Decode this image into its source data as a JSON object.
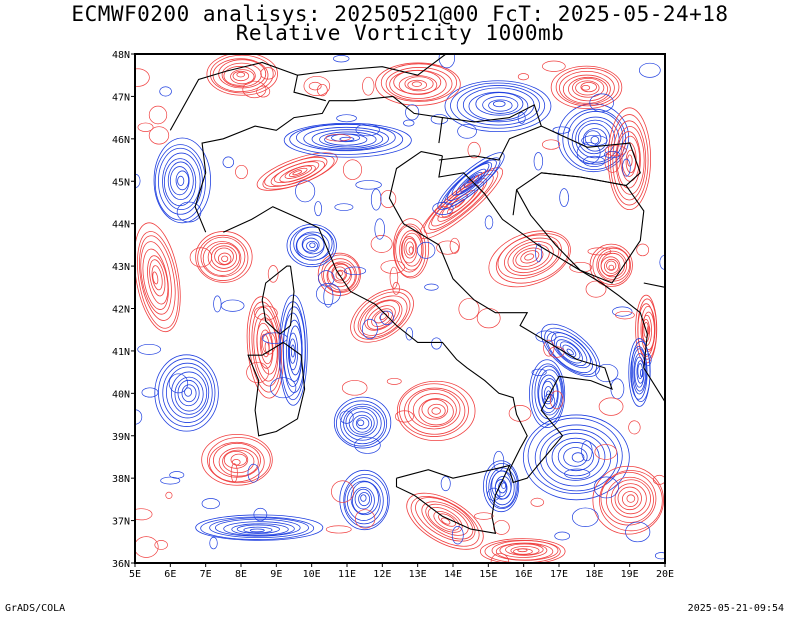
{
  "title_line1": "ECMWF0200 analisys: 20250521@00 FcT: 2025-05-24+18",
  "title_line2": "Relative Vorticity 1000mb",
  "footer_left": "GrADS/COLA",
  "footer_right": "2025-05-21-09:54",
  "map": {
    "lon_range": [
      5,
      20
    ],
    "lat_range": [
      36,
      48
    ],
    "lon_labels": [
      "5E",
      "6E",
      "7E",
      "8E",
      "9E",
      "10E",
      "11E",
      "12E",
      "13E",
      "14E",
      "15E",
      "16E",
      "17E",
      "18E",
      "19E",
      "20E"
    ],
    "lat_labels": [
      "36N",
      "37N",
      "38N",
      "39N",
      "40N",
      "41N",
      "42N",
      "43N",
      "44N",
      "45N",
      "46N",
      "47N",
      "48N"
    ],
    "positive_color": "#f04040",
    "negative_color": "#2040e0",
    "border_color": "#000000"
  }
}
